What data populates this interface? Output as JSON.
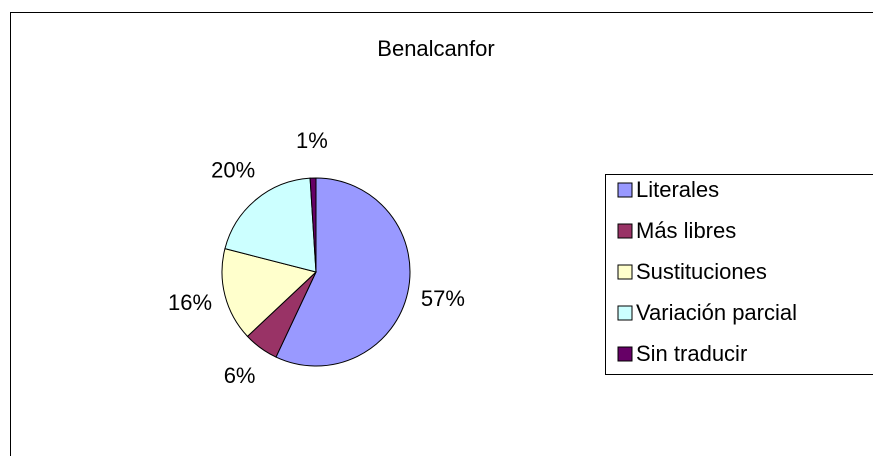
{
  "chart_data": {
    "type": "pie",
    "title": "Benalcanfor",
    "categories": [
      "Literales",
      "Más libres",
      "Sustituciones",
      "Variación parcial",
      "Sin traducir"
    ],
    "values": [
      57,
      6,
      16,
      20,
      1
    ],
    "value_labels": [
      "57%",
      "6%",
      "16%",
      "20%",
      "1%"
    ],
    "colors": [
      "#9999ff",
      "#993366",
      "#ffffcc",
      "#ccffff",
      "#660066"
    ],
    "legend": "right"
  }
}
